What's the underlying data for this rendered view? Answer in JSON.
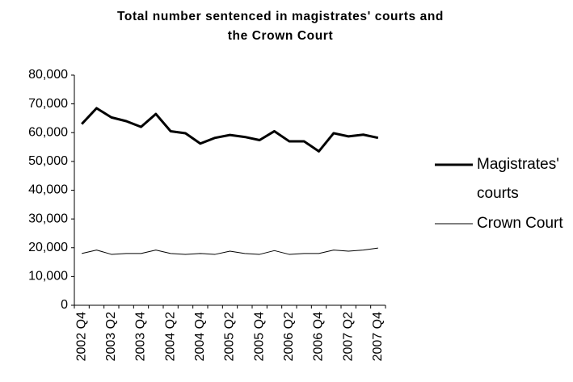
{
  "chart_data": {
    "type": "line",
    "title": "Total number sentenced in magistrates' courts and the Crown Court",
    "categories": [
      "2002 Q4",
      null,
      "2003 Q2",
      null,
      "2003 Q4",
      null,
      "2004 Q2",
      null,
      "2004 Q4",
      null,
      "2005 Q2",
      null,
      "2005 Q4",
      null,
      "2006 Q2",
      null,
      "2006 Q4",
      null,
      "2007 Q2",
      null,
      "2007 Q4"
    ],
    "series": [
      {
        "name": "Magistrates' courts",
        "color": "#000000",
        "line_width": 3,
        "values": [
          63000,
          68500,
          65300,
          64000,
          62000,
          66500,
          60500,
          59800,
          56200,
          58200,
          59200,
          58500,
          57400,
          60500,
          57000,
          57000,
          53500,
          59800,
          58700,
          59300,
          58200
        ]
      },
      {
        "name": "Crown Court",
        "color": "#000000",
        "line_width": 1,
        "values": [
          18000,
          19200,
          17700,
          18000,
          18000,
          19200,
          18000,
          17700,
          18000,
          17700,
          18800,
          18000,
          17700,
          19000,
          17700,
          18000,
          18000,
          19200,
          18800,
          19200,
          19900
        ]
      }
    ],
    "ylim": [
      0,
      80000
    ],
    "yticks": [
      {
        "value": 0,
        "label": "0"
      },
      {
        "value": 10000,
        "label": "10,000"
      },
      {
        "value": 20000,
        "label": "20,000"
      },
      {
        "value": 30000,
        "label": "30,000"
      },
      {
        "value": 40000,
        "label": "40,000"
      },
      {
        "value": 50000,
        "label": "50,000"
      },
      {
        "value": 60000,
        "label": "60,000"
      },
      {
        "value": 70000,
        "label": "70,000"
      },
      {
        "value": 80000,
        "label": "80,000"
      }
    ],
    "grid": false,
    "legend": "right"
  }
}
